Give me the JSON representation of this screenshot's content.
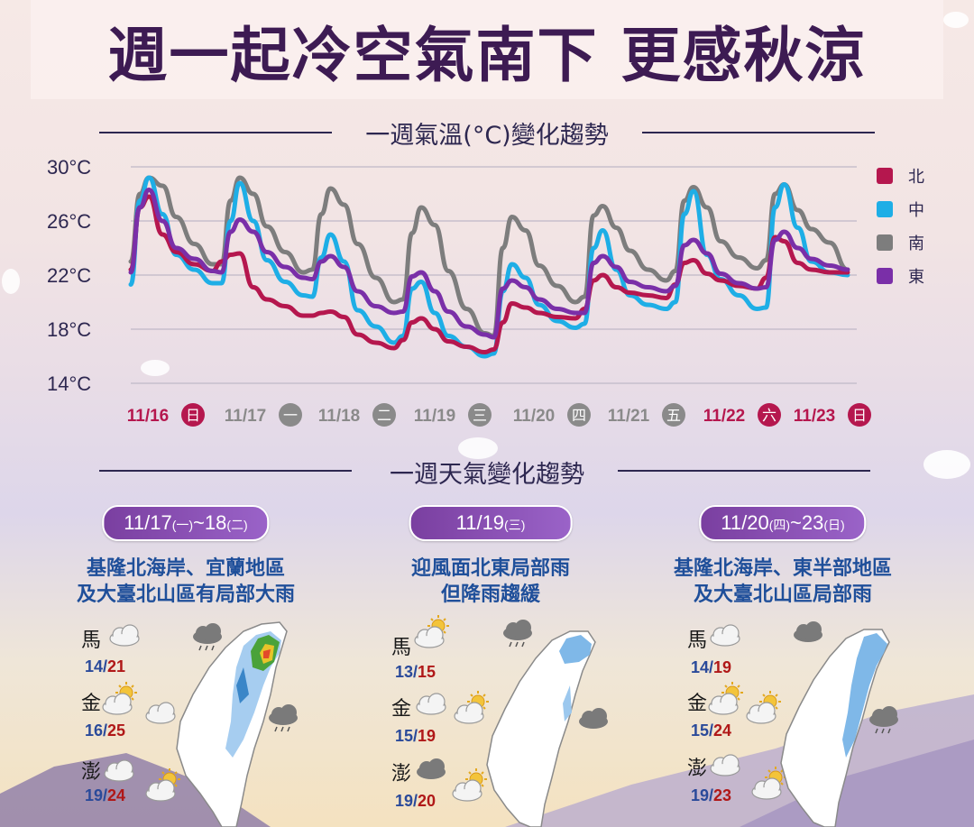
{
  "title": "週一起冷空氣南下 更感秋涼",
  "temp_section_title": "一週氣溫(°C)變化趨勢",
  "weather_section_title": "一週天氣變化趨勢",
  "colors": {
    "north": "#b5174e",
    "central": "#1eaee6",
    "south": "#7d7d7d",
    "east": "#7a2fa8",
    "weekend": "#b5174e",
    "weekday": "#8a8a8a"
  },
  "chart_data": {
    "type": "line",
    "title": "一週氣溫(°C)變化趨勢",
    "ylabel": "",
    "xlabel": "",
    "ylim": [
      14,
      30
    ],
    "yticks": [
      30,
      26,
      22,
      18,
      14
    ],
    "ytick_labels": [
      "30°C",
      "26°C",
      "22°C",
      "18°C",
      "14°C"
    ],
    "unit": "°C",
    "legend_position": "right",
    "grid": true,
    "days": [
      {
        "date": "11/16",
        "weekday": "日",
        "weekend": true
      },
      {
        "date": "11/17",
        "weekday": "一",
        "weekend": false
      },
      {
        "date": "11/18",
        "weekday": "二",
        "weekend": false
      },
      {
        "date": "11/19",
        "weekday": "三",
        "weekend": false
      },
      {
        "date": "11/20",
        "weekday": "四",
        "weekend": false
      },
      {
        "date": "11/21",
        "weekday": "五",
        "weekend": false
      },
      {
        "date": "11/22",
        "weekday": "六",
        "weekend": true
      },
      {
        "date": "11/23",
        "weekday": "日",
        "weekend": true
      }
    ],
    "x": [
      0,
      0.1,
      0.2,
      0.35,
      0.5,
      0.7,
      0.9,
      1.0,
      1.1,
      1.2,
      1.35,
      1.5,
      1.7,
      1.9,
      2.0,
      2.1,
      2.2,
      2.35,
      2.5,
      2.7,
      2.9,
      3.0,
      3.1,
      3.2,
      3.35,
      3.5,
      3.7,
      3.9,
      4.0,
      4.1,
      4.2,
      4.35,
      4.5,
      4.7,
      4.9,
      5.0,
      5.1,
      5.2,
      5.35,
      5.5,
      5.7,
      5.9,
      6.0,
      6.1,
      6.2,
      6.35,
      6.5,
      6.7,
      6.9,
      7.0,
      7.1,
      7.2,
      7.35,
      7.5,
      7.7,
      7.9
    ],
    "series": [
      {
        "name": "北",
        "key": "north",
        "values": [
          22.4,
          27.0,
          27.8,
          25.0,
          23.7,
          22.8,
          22.3,
          23.0,
          23.5,
          23.6,
          21.1,
          20.2,
          19.7,
          19.0,
          19.0,
          19.2,
          19.3,
          18.9,
          17.6,
          17.0,
          16.6,
          17.2,
          18.5,
          18.8,
          18.0,
          17.1,
          16.7,
          16.3,
          16.5,
          18.5,
          19.9,
          19.6,
          19.2,
          18.9,
          18.8,
          19.5,
          21.6,
          22.0,
          21.1,
          20.7,
          20.5,
          20.3,
          21.3,
          22.9,
          23.1,
          22.1,
          21.6,
          21.2,
          21.0,
          21.8,
          24.8,
          24.5,
          22.9,
          22.4,
          22.2,
          22.2
        ]
      },
      {
        "name": "中",
        "key": "central",
        "values": [
          21.3,
          27.5,
          29.2,
          26.5,
          23.5,
          22.4,
          21.4,
          21.4,
          26.0,
          28.8,
          26.0,
          23.1,
          21.5,
          20.5,
          20.4,
          23.3,
          25.0,
          23.0,
          19.4,
          18.2,
          17.0,
          17.5,
          21.0,
          21.5,
          19.2,
          17.5,
          16.7,
          16.0,
          16.2,
          20.8,
          22.8,
          21.8,
          19.8,
          18.6,
          18.1,
          18.4,
          24.0,
          25.3,
          22.4,
          20.5,
          19.8,
          19.5,
          20.0,
          26.5,
          28.2,
          23.5,
          21.7,
          20.5,
          19.5,
          19.6,
          27.0,
          28.7,
          25.5,
          23.0,
          22.2,
          22.0
        ]
      },
      {
        "name": "南",
        "key": "south",
        "values": [
          23.0,
          28.0,
          29.2,
          28.6,
          26.3,
          24.3,
          22.8,
          22.8,
          27.5,
          29.2,
          28.0,
          25.6,
          23.7,
          22.2,
          22.4,
          26.5,
          28.4,
          27.2,
          24.3,
          21.8,
          20.0,
          20.2,
          25.1,
          27.0,
          25.7,
          22.3,
          19.5,
          17.7,
          17.5,
          24.0,
          26.3,
          25.3,
          22.7,
          21.2,
          20.0,
          20.4,
          26.4,
          27.1,
          25.5,
          23.8,
          22.4,
          21.6,
          22.3,
          27.5,
          28.5,
          27.0,
          24.5,
          23.3,
          22.5,
          23.1,
          28.0,
          28.7,
          26.8,
          25.4,
          24.4,
          22.4
        ]
      },
      {
        "name": "東",
        "key": "east",
        "values": [
          22.2,
          27.0,
          28.3,
          26.0,
          24.0,
          23.2,
          22.3,
          22.2,
          25.2,
          26.1,
          25.2,
          23.7,
          22.6,
          21.8,
          21.7,
          23.0,
          23.4,
          22.6,
          20.8,
          19.7,
          19.2,
          19.3,
          21.9,
          22.2,
          20.8,
          19.3,
          18.2,
          17.6,
          17.4,
          21.0,
          21.6,
          21.1,
          20.2,
          19.5,
          19.2,
          19.2,
          22.9,
          23.4,
          22.6,
          21.5,
          21.1,
          20.8,
          21.2,
          24.2,
          24.6,
          23.6,
          22.1,
          21.4,
          21.0,
          21.1,
          24.6,
          25.2,
          24.0,
          23.2,
          22.7,
          22.4
        ]
      }
    ]
  },
  "legend": [
    {
      "label": "北",
      "color_key": "north"
    },
    {
      "label": "中",
      "color_key": "central"
    },
    {
      "label": "南",
      "color_key": "south"
    },
    {
      "label": "東",
      "color_key": "east"
    }
  ],
  "panels": [
    {
      "date": "11/17",
      "date_small": "(一)",
      "date_sep": "~",
      "date2": "18",
      "date2_small": "(二)",
      "desc_line1": "基隆北海岸、宜蘭地區",
      "desc_line2": "及大臺北山區有局部大雨",
      "islands": [
        {
          "name": "馬",
          "icon": "cloud-icon",
          "low": "14",
          "high": "21"
        },
        {
          "name": "金",
          "icon": "partly-sunny-icon",
          "low": "16",
          "high": "25"
        },
        {
          "name": "澎",
          "icon": "cloud-icon",
          "low": "19",
          "high": "24"
        }
      ]
    },
    {
      "date": "11/19",
      "date_small": "(三)",
      "date_sep": "",
      "date2": "",
      "date2_small": "",
      "desc_line1": "迎風面北東局部雨",
      "desc_line2": "但降雨趨緩",
      "islands": [
        {
          "name": "馬",
          "icon": "partly-sunny-icon",
          "low": "13",
          "high": "15"
        },
        {
          "name": "金",
          "icon": "cloud-icon",
          "low": "15",
          "high": "19"
        },
        {
          "name": "澎",
          "icon": "dark-cloud-icon",
          "low": "19",
          "high": "20"
        }
      ]
    },
    {
      "date": "11/20",
      "date_small": "(四)",
      "date_sep": "~",
      "date2": "23",
      "date2_small": "(日)",
      "desc_line1": "基隆北海岸、東半部地區",
      "desc_line2": "及大臺北山區局部雨",
      "islands": [
        {
          "name": "馬",
          "icon": "cloud-icon",
          "low": "14",
          "high": "19"
        },
        {
          "name": "金",
          "icon": "partly-sunny-icon",
          "low": "15",
          "high": "24"
        },
        {
          "name": "澎",
          "icon": "cloud-icon",
          "low": "19",
          "high": "23"
        }
      ]
    }
  ]
}
